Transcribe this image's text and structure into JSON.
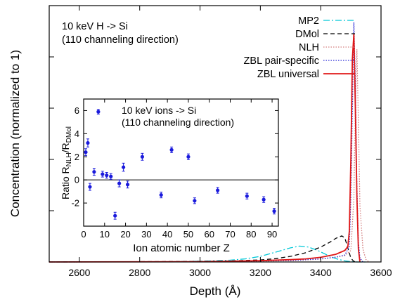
{
  "chart_data": [
    {
      "type": "line",
      "xlabel": "Depth (Å)",
      "ylabel": "Concentration (normalized to 1)",
      "xlim": [
        2500,
        3600
      ],
      "ylim": [
        0,
        1
      ],
      "xticks": [
        "2600",
        "2800",
        "3000",
        "3200",
        "3400",
        "3600"
      ],
      "y_tick_labels_shown": false,
      "annotation": [
        "10 keV H -> Si",
        "(110 channeling direction)"
      ],
      "legend_position": "top-right",
      "series": [
        {
          "name": "MP2",
          "color": "#00c8d8",
          "dash": "dash-dot",
          "x": [
            2500,
            2900,
            3000,
            3100,
            3150,
            3200,
            3250,
            3300,
            3330,
            3360,
            3390,
            3420,
            3450,
            3480,
            3500,
            3520,
            3550
          ],
          "y": [
            0,
            0.001,
            0.003,
            0.007,
            0.012,
            0.022,
            0.038,
            0.055,
            0.062,
            0.058,
            0.045,
            0.028,
            0.013,
            0.004,
            0.001,
            0.0,
            0.0
          ]
        },
        {
          "name": "DMol",
          "color": "#000000",
          "dash": "dash",
          "x": [
            2500,
            3000,
            3100,
            3200,
            3250,
            3300,
            3350,
            3400,
            3430,
            3450,
            3470,
            3480,
            3490,
            3500,
            3510,
            3520
          ],
          "y": [
            0,
            0.002,
            0.004,
            0.008,
            0.013,
            0.022,
            0.036,
            0.058,
            0.077,
            0.092,
            0.102,
            0.094,
            0.055,
            0.015,
            0.002,
            0.0
          ]
        },
        {
          "name": "NLH",
          "color": "#d48080",
          "dash": "dot",
          "x": [
            2500,
            3000,
            3200,
            3300,
            3400,
            3450,
            3480,
            3500,
            3510,
            3515,
            3520,
            3525,
            3530,
            3540,
            3550,
            3560
          ],
          "y": [
            0,
            0.001,
            0.003,
            0.005,
            0.011,
            0.018,
            0.025,
            0.045,
            0.25,
            0.62,
            0.83,
            0.55,
            0.22,
            0.05,
            0.01,
            0.0
          ]
        },
        {
          "name": "ZBL pair-specific",
          "color": "#2a2ad6",
          "dash": "dot",
          "x": [
            2500,
            3000,
            3200,
            3300,
            3400,
            3450,
            3480,
            3495,
            3500,
            3505,
            3510,
            3515,
            3520,
            3525,
            3530,
            3540
          ],
          "y": [
            0,
            0.001,
            0.004,
            0.006,
            0.012,
            0.019,
            0.027,
            0.06,
            0.25,
            0.58,
            0.935,
            0.7,
            0.3,
            0.08,
            0.015,
            0.0
          ]
        },
        {
          "name": "ZBL universal",
          "color": "#e01818",
          "dash": "solid",
          "x": [
            2500,
            3000,
            3100,
            3200,
            3300,
            3350,
            3400,
            3450,
            3480,
            3490,
            3495,
            3500,
            3505,
            3510,
            3515,
            3520,
            3525,
            3530
          ],
          "y": [
            0,
            0.001,
            0.003,
            0.005,
            0.009,
            0.012,
            0.018,
            0.03,
            0.045,
            0.06,
            0.12,
            0.4,
            0.79,
            0.89,
            0.6,
            0.25,
            0.05,
            0.0
          ]
        }
      ]
    },
    {
      "type": "scatter",
      "xlabel": "Ion atomic number Z",
      "ylabel_main": "Ratio R",
      "ylabel_sub1": "NLH",
      "ylabel_mid": "/R",
      "ylabel_sub2": "DMol",
      "xlim": [
        0,
        93
      ],
      "ylim": [
        -4,
        7
      ],
      "xticks": [
        "0",
        "10",
        "20",
        "30",
        "40",
        "50",
        "60",
        "70",
        "80",
        "90"
      ],
      "yticks": [
        "-2",
        "0",
        "2",
        "4",
        "6"
      ],
      "annotation": [
        "10 keV ions -> Si",
        "(110 channeling direction)"
      ],
      "grid": false,
      "series": [
        {
          "color": "#1a1adc",
          "x": [
            1,
            2,
            3,
            5,
            7,
            9,
            11,
            13,
            15,
            17,
            19,
            21,
            28,
            37,
            42,
            50,
            53,
            64,
            78,
            86,
            91
          ],
          "y": [
            2.4,
            3.2,
            -0.6,
            0.7,
            5.9,
            0.5,
            0.4,
            0.3,
            -3.1,
            -0.3,
            1.1,
            -0.4,
            2.0,
            -1.3,
            2.6,
            2.0,
            -1.8,
            -0.9,
            -1.4,
            -1.7,
            -2.7
          ],
          "err": [
            0.3,
            0.35,
            0.3,
            0.3,
            0.2,
            0.25,
            0.25,
            0.25,
            0.3,
            0.3,
            0.35,
            0.3,
            0.3,
            0.25,
            0.25,
            0.25,
            0.25,
            0.25,
            0.25,
            0.25,
            0.25
          ]
        }
      ]
    }
  ]
}
